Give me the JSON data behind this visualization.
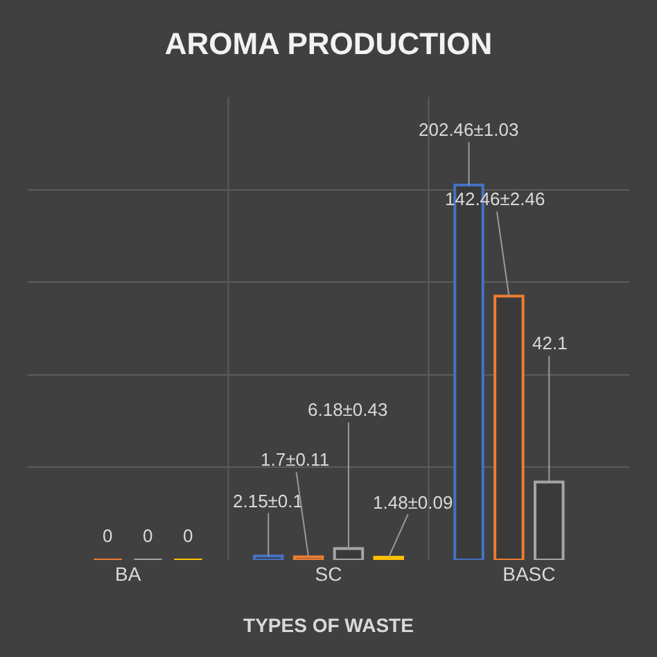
{
  "chart_data": {
    "type": "bar",
    "title": "AROMA PRODUCTION",
    "xlabel": "TYPES OF WASTE",
    "categories": [
      "BA",
      "SC",
      "BASC"
    ],
    "series": [
      {
        "color": "#4472c4",
        "values": [
          null,
          2.15,
          202.46
        ],
        "value_labels": [
          null,
          "2.15±0.1",
          "202.46±1.03"
        ]
      },
      {
        "color": "#ed7d31",
        "values": [
          0,
          1.7,
          142.46
        ],
        "value_labels": [
          "0",
          "1.7±0.11",
          "142.46±2.46"
        ]
      },
      {
        "color": "#a5a5a5",
        "values": [
          0,
          6.18,
          42.1
        ],
        "value_labels": [
          "0",
          "6.18±0.43",
          "42.1"
        ]
      },
      {
        "color": "#ffc000",
        "values": [
          0,
          1.48,
          null
        ],
        "value_labels": [
          "0",
          "1.48±0.09",
          null
        ]
      }
    ],
    "ylim": [
      0,
      250
    ],
    "yticks": [
      {
        "value": 50,
        "label": null
      },
      {
        "value": 100,
        "label": null
      },
      {
        "value": 150,
        "label": null
      },
      {
        "value": 200,
        "label": null
      }
    ],
    "tick_labels": "x",
    "grid": true
  }
}
